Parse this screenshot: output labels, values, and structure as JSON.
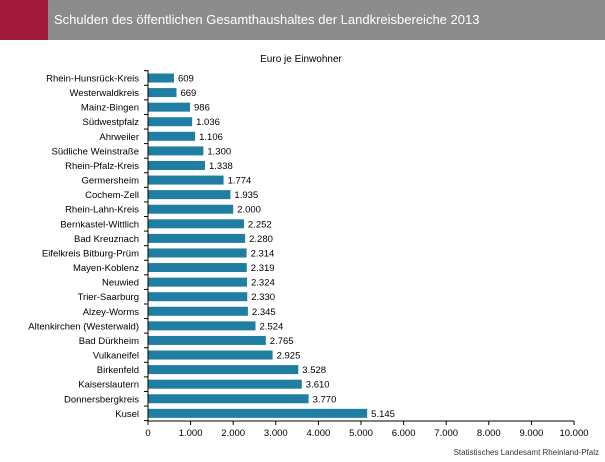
{
  "header": {
    "title": "Schulden des öffentlichen Gesamthaushaltes der Landkreisbereiche 2013"
  },
  "colors": {
    "accent": "#a0183a",
    "header_bg": "#8c8c8c",
    "bar": "#1f7ea1"
  },
  "source": "Statistisches Landesamt Rheinland-Pfalz",
  "chart_data": {
    "type": "bar",
    "orientation": "horizontal",
    "title": "Euro je Einwohner",
    "xlabel": "",
    "ylabel": "",
    "xlim": [
      0,
      10000
    ],
    "grid": false,
    "legend": "none",
    "categories": [
      "Rhein-Hunsrück-Kreis",
      "Westerwaldkreis",
      "Mainz-Bingen",
      "Südwestpfalz",
      "Ahrweiler",
      "Südliche Weinstraße",
      "Rhein-Pfalz-Kreis",
      "Germersheim",
      "Cochem-Zell",
      "Rhein-Lahn-Kreis",
      "Bernkastel-Wittlich",
      "Bad Kreuznach",
      "Eifelkreis Bitburg-Prüm",
      "Mayen-Koblenz",
      "Neuwied",
      "Trier-Saarburg",
      "Alzey-Worms",
      "Altenkirchen (Westerwald)",
      "Bad Dürkheim",
      "Vulkaneifel",
      "Birkenfeld",
      "Kaiserslautern",
      "Donnersbergkreis",
      "Kusel"
    ],
    "values": [
      609,
      669,
      986,
      1036,
      1106,
      1300,
      1338,
      1774,
      1935,
      2000,
      2252,
      2280,
      2314,
      2319,
      2324,
      2330,
      2345,
      2524,
      2765,
      2925,
      3528,
      3610,
      3770,
      5145
    ],
    "value_labels": [
      "609",
      "669",
      "986",
      "1.036",
      "1.106",
      "1.300",
      "1.338",
      "1.774",
      "1.935",
      "2.000",
      "2.252",
      "2.280",
      "2.314",
      "2.319",
      "2.324",
      "2.330",
      "2.345",
      "2.524",
      "2.765",
      "2.925",
      "3.528",
      "3.610",
      "3.770",
      "5.145"
    ],
    "ticks": [
      0,
      1000,
      2000,
      3000,
      4000,
      5000,
      6000,
      7000,
      8000,
      9000,
      10000
    ],
    "tick_labels": [
      "0",
      "1.000",
      "2.000",
      "3.000",
      "4.000",
      "5.000",
      "6.000",
      "7.000",
      "8.000",
      "9.000",
      "10.000"
    ]
  }
}
